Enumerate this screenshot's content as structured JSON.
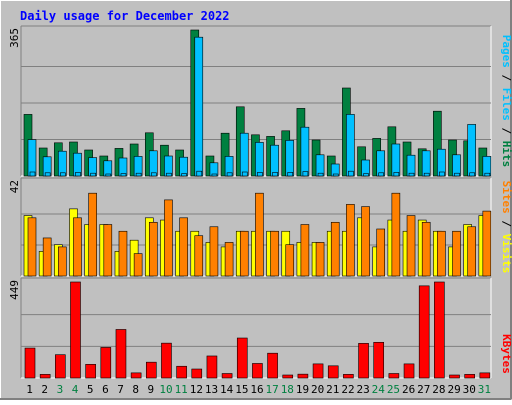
{
  "chart_data": [
    {
      "type": "bar",
      "title": "Daily usage for December 2022",
      "ymax_label": "365",
      "ylim": [
        0,
        365
      ],
      "categories": [
        "1",
        "2",
        "3",
        "4",
        "5",
        "6",
        "7",
        "8",
        "9",
        "10",
        "11",
        "12",
        "13",
        "14",
        "15",
        "16",
        "17",
        "18",
        "19",
        "20",
        "21",
        "22",
        "23",
        "24",
        "25",
        "26",
        "27",
        "28",
        "29",
        "30",
        "31"
      ],
      "weekend_days": [
        "3",
        "4",
        "10",
        "11",
        "17",
        "18",
        "24",
        "25",
        "31"
      ],
      "grid": true,
      "series": [
        {
          "name": "Hits",
          "color": "#008040",
          "values": [
            154,
            70,
            83,
            85,
            65,
            50,
            69,
            80,
            108,
            77,
            65,
            365,
            50,
            107,
            173,
            103,
            99,
            113,
            169,
            90,
            50,
            220,
            73,
            94,
            123,
            85,
            68,
            162,
            90,
            88,
            70
          ]
        },
        {
          "name": "Files",
          "color": "#00c0ff",
          "values": [
            91,
            48,
            62,
            57,
            46,
            38,
            45,
            49,
            63,
            50,
            47,
            347,
            33,
            49,
            107,
            84,
            77,
            89,
            122,
            53,
            30,
            154,
            40,
            63,
            80,
            52,
            63,
            67,
            53,
            129,
            49
          ]
        },
        {
          "name": "Pages",
          "color": "#00c0ff",
          "values": [
            10,
            8,
            8,
            9,
            7,
            5,
            6,
            7,
            8,
            7,
            6,
            12,
            5,
            8,
            10,
            9,
            9,
            9,
            11,
            7,
            5,
            12,
            6,
            8,
            9,
            7,
            7,
            10,
            7,
            8,
            7
          ]
        }
      ],
      "legend_order": [
        "Pages",
        "Files",
        "Hits"
      ]
    },
    {
      "type": "bar",
      "ymax_label": "42",
      "ylim": [
        0,
        42
      ],
      "series": [
        {
          "name": "Visits",
          "color": "#ffff00",
          "values": [
            27,
            11,
            14,
            30,
            23,
            23,
            11,
            16,
            26,
            25,
            20,
            20,
            15,
            13,
            20,
            20,
            20,
            20,
            15,
            15,
            20,
            20,
            26,
            13,
            25,
            20,
            25,
            20,
            13,
            23,
            27
          ]
        },
        {
          "name": "Sites",
          "color": "#ff8000",
          "values": [
            26,
            17,
            13,
            26,
            37,
            23,
            20,
            10,
            24,
            34,
            26,
            18,
            22,
            15,
            20,
            37,
            20,
            14,
            23,
            15,
            24,
            32,
            31,
            21,
            37,
            27,
            24,
            20,
            20,
            22,
            29
          ]
        }
      ],
      "legend_order": [
        "Sites",
        "Visits"
      ]
    },
    {
      "type": "bar",
      "ymax_label": "449",
      "ylim": [
        0,
        449
      ],
      "series": [
        {
          "name": "KBytes",
          "color": "#ff0000",
          "values": [
            140,
            17,
            109,
            449,
            64,
            143,
            227,
            24,
            74,
            163,
            55,
            42,
            103,
            21,
            187,
            68,
            116,
            14,
            18,
            66,
            57,
            17,
            162,
            167,
            21,
            66,
            431,
            449,
            14,
            17,
            24
          ]
        }
      ],
      "legend_order": [
        "KBytes"
      ]
    }
  ]
}
